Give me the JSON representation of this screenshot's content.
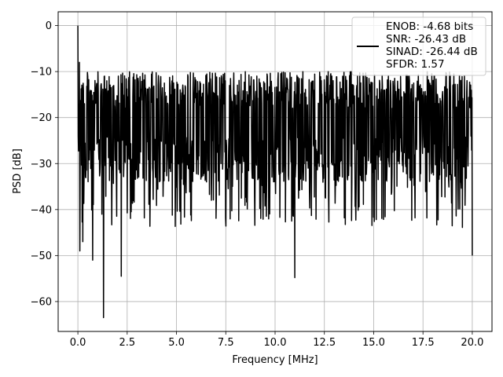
{
  "chart_data": {
    "type": "line",
    "title": "",
    "xlabel": "Frequency [MHz]",
    "ylabel": "PSD [dB]",
    "xlim": [
      -1.0,
      21.0
    ],
    "ylim": [
      -66.5,
      3.0
    ],
    "grid": true,
    "x_ticks": [
      0.0,
      2.5,
      5.0,
      7.5,
      10.0,
      12.5,
      15.0,
      17.5,
      20.0
    ],
    "x_tick_labels": [
      "0.0",
      "2.5",
      "5.0",
      "7.5",
      "10.0",
      "12.5",
      "15.0",
      "17.5",
      "20.0"
    ],
    "y_ticks": [
      0,
      -10,
      -20,
      -30,
      -40,
      -50,
      -60
    ],
    "y_tick_labels": [
      "0",
      "−10",
      "−20",
      "−30",
      "−40",
      "−50",
      "−60"
    ],
    "line_color": "#000000",
    "legend": {
      "placement": "upper-right",
      "lines": [
        "ENOB: -4.68 bits",
        "SNR: -26.43 dB",
        "SINAD: -26.44 dB",
        "SFDR: 1.57"
      ]
    },
    "series": [
      {
        "x_range": [
          0.0,
          20.0
        ],
        "point_count": 1200,
        "envelope_upper_approx": -10,
        "envelope_lower_approx": -34,
        "typical_range": [
          -34,
          -10
        ],
        "peaks": [
          {
            "x": 0.0,
            "y": 0.0
          },
          {
            "x": 0.08,
            "y": -8.0
          },
          {
            "x": 0.12,
            "y": -25.0
          }
        ],
        "dips": [
          {
            "x": 0.1,
            "y": -49.0
          },
          {
            "x": 0.25,
            "y": -47.0
          },
          {
            "x": 0.75,
            "y": -51.0
          },
          {
            "x": 1.3,
            "y": -63.5
          },
          {
            "x": 2.2,
            "y": -54.5
          },
          {
            "x": 11.0,
            "y": -54.8
          },
          {
            "x": 20.0,
            "y": -50.0
          }
        ]
      }
    ]
  }
}
